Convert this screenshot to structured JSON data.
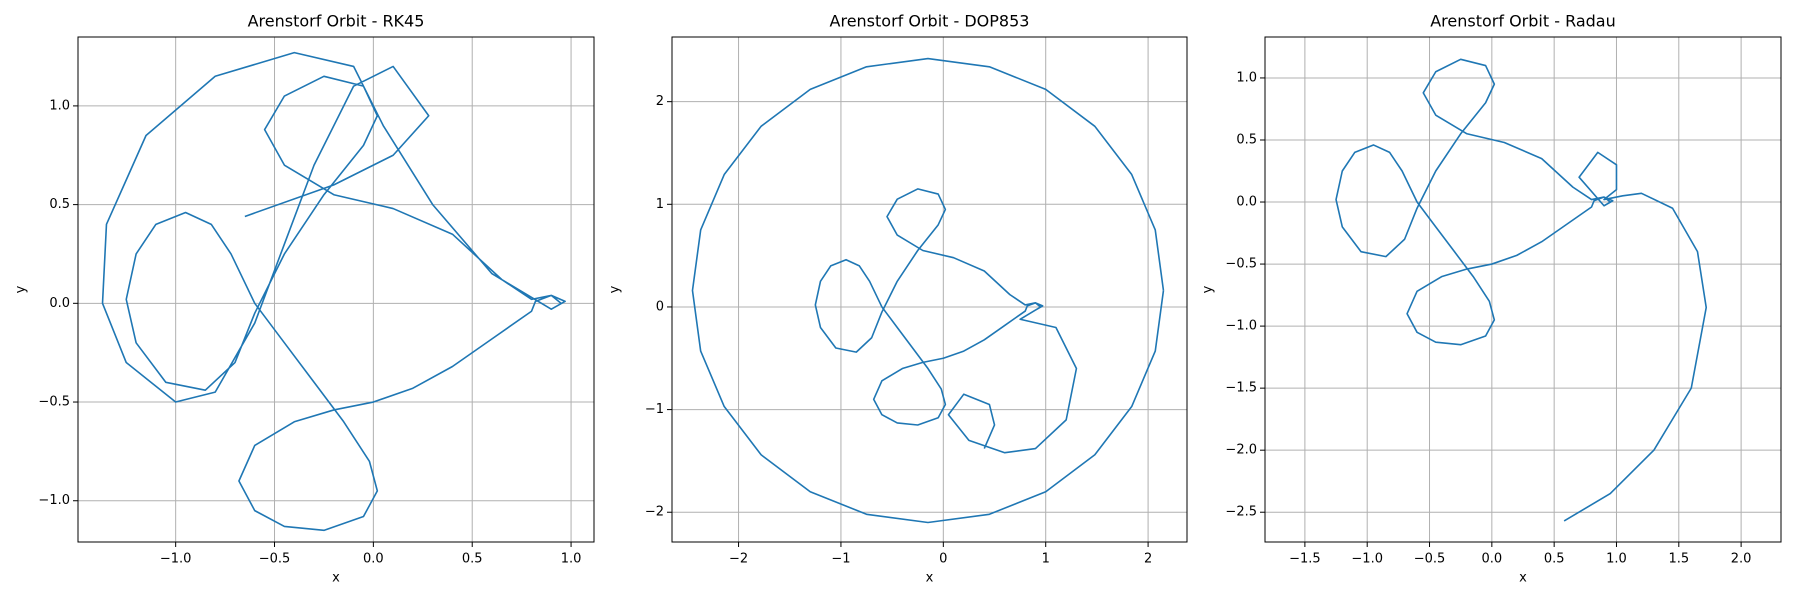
{
  "chart_data": [
    {
      "type": "line",
      "title": "Arenstorf Orbit - RK45",
      "xlabel": "x",
      "ylabel": "y",
      "grid": true,
      "xlim": [
        -1.494,
        1.116
      ],
      "ylim": [
        -1.209,
        1.349
      ],
      "xticks": [
        {
          "value": -1.0,
          "label": "−1.0"
        },
        {
          "value": -0.5,
          "label": "−0.5"
        },
        {
          "value": 0.0,
          "label": "0.0"
        },
        {
          "value": 0.5,
          "label": "0.5"
        },
        {
          "value": 1.0,
          "label": "1.0"
        }
      ],
      "yticks": [
        {
          "value": -1.0,
          "label": "−1.0"
        },
        {
          "value": -0.5,
          "label": "−0.5"
        },
        {
          "value": 0.0,
          "label": "0.0"
        },
        {
          "value": 0.5,
          "label": "0.5"
        },
        {
          "value": 1.0,
          "label": "1.0"
        }
      ],
      "x": [
        0.95,
        0.9,
        0.82,
        0.8,
        0.6,
        0.4,
        0.2,
        0,
        -0.2,
        -0.4,
        -0.6,
        -0.68,
        -0.6,
        -0.45,
        -0.25,
        -0.05,
        0.02,
        -0.02,
        -0.15,
        -0.3,
        -0.45,
        -0.6,
        -0.72,
        -0.82,
        -0.95,
        -1.1,
        -1.2,
        -1.25,
        -1.2,
        -1.05,
        -0.85,
        -0.7,
        -0.6,
        -0.45,
        -0.25,
        -0.05,
        0.02,
        -0.05,
        -0.25,
        -0.45,
        -0.55,
        -0.45,
        -0.2,
        0.1,
        0.4,
        0.65,
        0.8,
        0.9,
        0.97,
        0.9,
        0.6,
        0.3,
        0.05,
        -0.1,
        -0.4,
        -0.8,
        -1.15,
        -1.35,
        -1.37,
        -1.25,
        -1.0,
        -0.8,
        -0.6,
        -0.45,
        -0.3,
        -0.1,
        0.1,
        0.28,
        0.1,
        -0.2,
        -0.65
      ],
      "series": [
        {
          "color": "#1f77b4",
          "values": [
            0,
            0.04,
            0.01,
            -0.04,
            -0.18,
            -0.32,
            -0.43,
            -0.5,
            -0.54,
            -0.6,
            -0.72,
            -0.9,
            -1.05,
            -1.13,
            -1.15,
            -1.08,
            -0.95,
            -0.8,
            -0.6,
            -0.4,
            -0.2,
            0,
            0.25,
            0.4,
            0.46,
            0.4,
            0.25,
            0.02,
            -0.2,
            -0.4,
            -0.44,
            -0.3,
            -0.05,
            0.25,
            0.55,
            0.8,
            0.95,
            1.1,
            1.15,
            1.05,
            0.88,
            0.7,
            0.55,
            0.48,
            0.35,
            0.12,
            0.02,
            0.04,
            0.01,
            -0.03,
            0.15,
            0.5,
            0.9,
            1.2,
            1.27,
            1.15,
            0.85,
            0.4,
            0.0,
            -0.3,
            -0.5,
            -0.45,
            -0.1,
            0.3,
            0.7,
            1.1,
            1.2,
            0.95,
            0.75,
            0.6,
            0.44
          ]
        }
      ]
    },
    {
      "type": "line",
      "title": "Arenstorf Orbit - DOP853",
      "xlabel": "x",
      "ylabel": "y",
      "grid": true,
      "xlim": [
        -2.65,
        2.38
      ],
      "ylim": [
        -2.29,
        2.63
      ],
      "xticks": [
        {
          "value": -2,
          "label": "−2"
        },
        {
          "value": -1,
          "label": "−1"
        },
        0,
        1,
        2
      ],
      "yticks": [
        {
          "value": -2,
          "label": "−2"
        },
        {
          "value": -1,
          "label": "−1"
        },
        0,
        1,
        2
      ],
      "x": [
        0.95,
        0.9,
        0.82,
        0.8,
        0.6,
        0.4,
        0.2,
        0,
        -0.2,
        -0.4,
        -0.6,
        -0.68,
        -0.6,
        -0.45,
        -0.25,
        -0.05,
        0.02,
        -0.02,
        -0.15,
        -0.3,
        -0.45,
        -0.6,
        -0.72,
        -0.82,
        -0.95,
        -1.1,
        -1.2,
        -1.25,
        -1.2,
        -1.05,
        -0.85,
        -0.7,
        -0.6,
        -0.45,
        -0.25,
        -0.05,
        0.02,
        -0.05,
        -0.25,
        -0.45,
        -0.55,
        -0.45,
        -0.2,
        0.1,
        0.4,
        0.65,
        0.8,
        0.9,
        0.97,
        0.9,
        0.75,
        1.1,
        1.3,
        1.2,
        0.9,
        0.6,
        0.25,
        0.05,
        0.2,
        0.45,
        0.5,
        0.4,
        null,
        2.15,
        2.07,
        1.84,
        1.48,
        1.0,
        0.45,
        -0.15,
        -0.75,
        -1.3,
        -1.78,
        -2.14,
        -2.37,
        -2.45,
        -2.37,
        -2.14,
        -1.78,
        -1.3,
        -0.75,
        -0.15,
        0.45,
        1.0,
        1.48,
        1.84,
        2.07,
        2.15
      ],
      "series": [
        {
          "color": "#1f77b4",
          "values": [
            0,
            0.04,
            0.01,
            -0.04,
            -0.18,
            -0.32,
            -0.43,
            -0.5,
            -0.54,
            -0.6,
            -0.72,
            -0.9,
            -1.05,
            -1.13,
            -1.15,
            -1.08,
            -0.95,
            -0.8,
            -0.6,
            -0.4,
            -0.2,
            0,
            0.25,
            0.4,
            0.46,
            0.4,
            0.25,
            0.02,
            -0.2,
            -0.4,
            -0.44,
            -0.3,
            -0.05,
            0.25,
            0.55,
            0.8,
            0.95,
            1.1,
            1.15,
            1.05,
            0.88,
            0.7,
            0.55,
            0.48,
            0.35,
            0.12,
            0.02,
            0.04,
            0.01,
            -0.03,
            -0.12,
            -0.2,
            -0.6,
            -1.1,
            -1.38,
            -1.42,
            -1.3,
            -1.05,
            -0.85,
            -0.95,
            -1.15,
            -1.38,
            null,
            0.16,
            0.75,
            1.29,
            1.76,
            2.12,
            2.34,
            2.42,
            2.34,
            2.12,
            1.76,
            1.29,
            0.75,
            0.16,
            -0.43,
            -0.97,
            -1.44,
            -1.8,
            -2.02,
            -2.1,
            -2.02,
            -1.8,
            -1.44,
            -0.97,
            -0.43,
            0.16
          ]
        }
      ]
    },
    {
      "type": "line",
      "title": "Arenstorf Orbit - Radau",
      "xlabel": "x",
      "ylabel": "y",
      "grid": true,
      "xlim": [
        -1.82,
        2.32
      ],
      "ylim": [
        -2.74,
        1.33
      ],
      "xticks": [
        {
          "value": -1.5,
          "label": "−1.5"
        },
        {
          "value": -1.0,
          "label": "−1.0"
        },
        {
          "value": -0.5,
          "label": "−0.5"
        },
        {
          "value": 0.0,
          "label": "0.0"
        },
        {
          "value": 0.5,
          "label": "0.5"
        },
        {
          "value": 1.0,
          "label": "1.0"
        },
        {
          "value": 1.5,
          "label": "1.5"
        },
        {
          "value": 2.0,
          "label": "2.0"
        }
      ],
      "yticks": [
        {
          "value": -2.5,
          "label": "−2.5"
        },
        {
          "value": -2.0,
          "label": "−2.0"
        },
        {
          "value": -1.5,
          "label": "−1.5"
        },
        {
          "value": -1.0,
          "label": "−1.0"
        },
        {
          "value": -0.5,
          "label": "−0.5"
        },
        {
          "value": 0.0,
          "label": "0.0"
        },
        {
          "value": 0.5,
          "label": "0.5"
        },
        {
          "value": 1.0,
          "label": "1.0"
        }
      ],
      "x": [
        0.95,
        0.9,
        0.82,
        0.8,
        0.6,
        0.4,
        0.2,
        0,
        -0.2,
        -0.4,
        -0.6,
        -0.68,
        -0.6,
        -0.45,
        -0.25,
        -0.05,
        0.02,
        -0.02,
        -0.15,
        -0.3,
        -0.45,
        -0.6,
        -0.72,
        -0.82,
        -0.95,
        -1.1,
        -1.2,
        -1.25,
        -1.2,
        -1.05,
        -0.85,
        -0.7,
        -0.6,
        -0.45,
        -0.25,
        -0.05,
        0.02,
        -0.05,
        -0.25,
        -0.45,
        -0.55,
        -0.45,
        -0.2,
        0.1,
        0.4,
        0.65,
        0.8,
        0.9,
        0.97,
        0.9,
        0.7,
        0.85,
        1.0,
        1.0,
        0.9,
        1.05,
        1.2,
        1.45,
        1.65,
        1.72,
        1.6,
        1.3,
        0.95,
        0.58
      ],
      "series": [
        {
          "color": "#1f77b4",
          "values": [
            0,
            0.04,
            0.01,
            -0.04,
            -0.18,
            -0.32,
            -0.43,
            -0.5,
            -0.54,
            -0.6,
            -0.72,
            -0.9,
            -1.05,
            -1.13,
            -1.15,
            -1.08,
            -0.95,
            -0.8,
            -0.6,
            -0.4,
            -0.2,
            0,
            0.25,
            0.4,
            0.46,
            0.4,
            0.25,
            0.02,
            -0.2,
            -0.4,
            -0.44,
            -0.3,
            -0.05,
            0.25,
            0.55,
            0.8,
            0.95,
            1.1,
            1.15,
            1.05,
            0.88,
            0.7,
            0.55,
            0.48,
            0.35,
            0.12,
            0.02,
            0.04,
            0.01,
            -0.03,
            0.2,
            0.4,
            0.3,
            0.1,
            0.02,
            0.05,
            0.07,
            -0.05,
            -0.4,
            -0.85,
            -1.5,
            -2.0,
            -2.35,
            -2.57
          ]
        }
      ]
    }
  ]
}
